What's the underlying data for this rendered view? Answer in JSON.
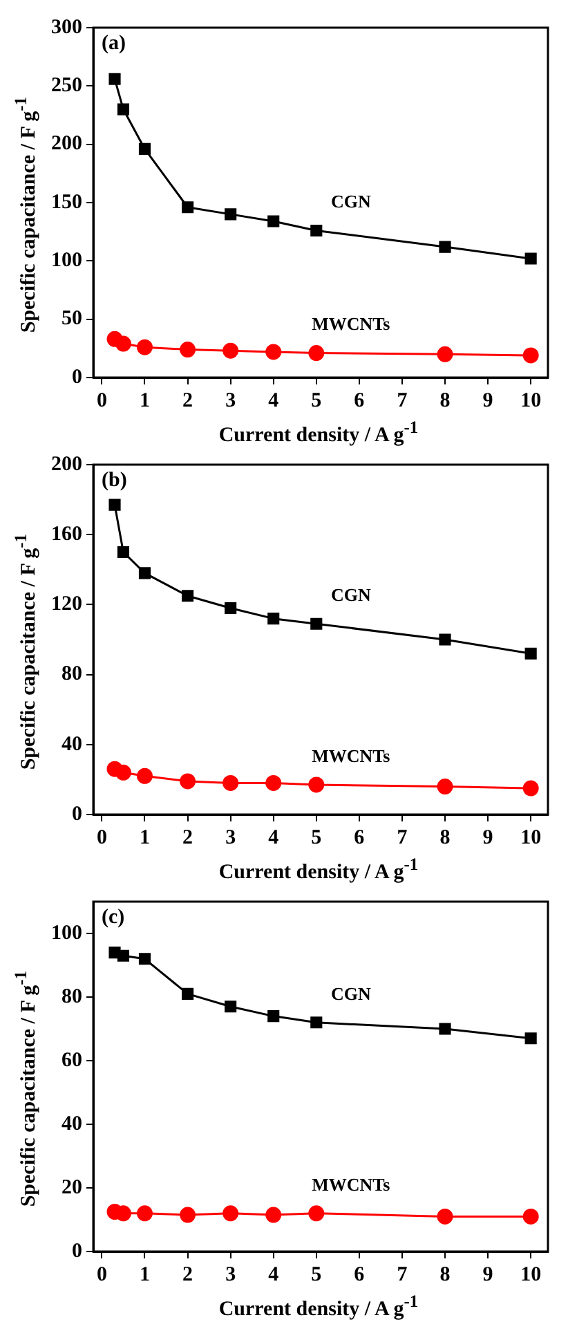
{
  "chart_data": [
    {
      "type": "line",
      "title": "(a)",
      "xlabel": "Current density / A g$^{-1}$",
      "ylabel": "Specific capacitance / F g$^{-1}$",
      "x": [
        0.3,
        0.5,
        1,
        2,
        3,
        4,
        5,
        8,
        10
      ],
      "xlim": [
        -0.2,
        10.4
      ],
      "xticks": [
        0,
        1,
        2,
        3,
        4,
        5,
        6,
        7,
        8,
        9,
        10
      ],
      "ylim": [
        0,
        300
      ],
      "yticks": [
        0,
        50,
        100,
        150,
        200,
        250,
        300
      ],
      "grid": false,
      "series": [
        {
          "name": "CGN",
          "color": "#000000",
          "marker": "square",
          "values": [
            256,
            230,
            196,
            146,
            140,
            134,
            126,
            112,
            102
          ]
        },
        {
          "name": "MWCNTs",
          "color": "#ff0000",
          "marker": "circle",
          "values": [
            33,
            29,
            26,
            24,
            23,
            22,
            21,
            20,
            19
          ]
        }
      ]
    },
    {
      "type": "line",
      "title": "(b)",
      "xlabel": "Current density / A g$^{-1}$",
      "ylabel": "Specific capacitance / F g$^{-1}$",
      "x": [
        0.3,
        0.5,
        1,
        2,
        3,
        4,
        5,
        8,
        10
      ],
      "xlim": [
        -0.2,
        10.4
      ],
      "xticks": [
        0,
        1,
        2,
        3,
        4,
        5,
        6,
        7,
        8,
        9,
        10
      ],
      "ylim": [
        0,
        200
      ],
      "yticks": [
        0,
        40,
        80,
        120,
        160,
        200
      ],
      "grid": false,
      "series": [
        {
          "name": "CGN",
          "color": "#000000",
          "marker": "square",
          "values": [
            177,
            150,
            138,
            125,
            118,
            112,
            109,
            100,
            92
          ]
        },
        {
          "name": "MWCNTs",
          "color": "#ff0000",
          "marker": "circle",
          "values": [
            26,
            24,
            22,
            19,
            18,
            18,
            17,
            16,
            15
          ]
        }
      ]
    },
    {
      "type": "line",
      "title": "(c)",
      "xlabel": "Current density / A g$^{-1}$",
      "ylabel": "Specific capacitance / F g$^{-1}$",
      "x": [
        0.3,
        0.5,
        1,
        2,
        3,
        4,
        5,
        8,
        10
      ],
      "xlim": [
        -0.2,
        10.4
      ],
      "xticks": [
        0,
        1,
        2,
        3,
        4,
        5,
        6,
        7,
        8,
        9,
        10
      ],
      "ylim": [
        0,
        110
      ],
      "yticks": [
        0,
        20,
        40,
        60,
        80,
        100
      ],
      "grid": false,
      "series": [
        {
          "name": "CGN",
          "color": "#000000",
          "marker": "square",
          "values": [
            94,
            93,
            92,
            81,
            77,
            74,
            72,
            70,
            67
          ]
        },
        {
          "name": "MWCNTs",
          "color": "#ff0000",
          "marker": "circle",
          "values": [
            12.5,
            12,
            12,
            11.5,
            12,
            11.5,
            12,
            11,
            11
          ]
        }
      ]
    }
  ]
}
